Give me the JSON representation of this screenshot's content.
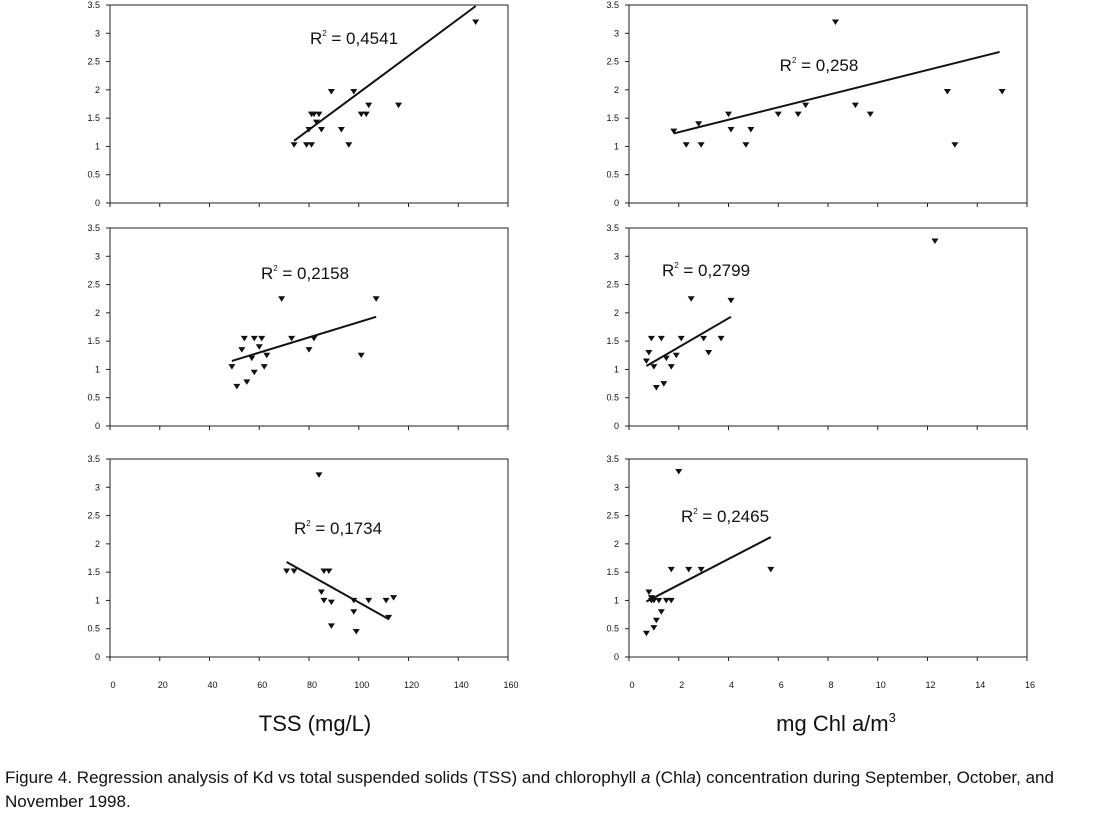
{
  "x_axis_labels": {
    "left": "TSS (mg/L)",
    "right_prefix": "mg Chl a/m",
    "right_superscript": "3"
  },
  "caption": {
    "prefix": "Figure 4. Regression analysis of Kd vs total suspended solids (TSS) and chlorophyll ",
    "italic_1": "a",
    "middle": " (Chl",
    "italic_2": "a",
    "suffix": ") concentration during September, October, and November 1998."
  },
  "chart_data": [
    {
      "id": "tss-september",
      "type": "scatter",
      "xlim": [
        0,
        160
      ],
      "ylim": [
        0,
        3.5
      ],
      "xticks": [
        "0",
        "20",
        "40",
        "60",
        "80",
        "100",
        "120",
        "140",
        "160"
      ],
      "yticks": [
        "0",
        "0.5",
        "1",
        "1.5",
        "2",
        "2.5",
        "3",
        "3.5"
      ],
      "x_tick_labels_shown": false,
      "r2_base": "R",
      "r2_exp": "2",
      "r2_value": " = 0,4541",
      "trendline": [
        [
          74,
          1.1
        ],
        [
          147,
          3.48
        ]
      ],
      "points": [
        [
          74,
          1.03
        ],
        [
          79,
          1.03
        ],
        [
          80,
          1.3
        ],
        [
          81,
          1.03
        ],
        [
          81,
          1.57
        ],
        [
          82,
          1.57
        ],
        [
          83,
          1.43
        ],
        [
          84,
          1.57
        ],
        [
          85,
          1.3
        ],
        [
          89,
          1.97
        ],
        [
          93,
          1.3
        ],
        [
          96,
          1.03
        ],
        [
          98,
          1.97
        ],
        [
          101,
          1.57
        ],
        [
          103,
          1.57
        ],
        [
          104,
          1.73
        ],
        [
          116,
          1.73
        ],
        [
          147,
          3.2
        ]
      ]
    },
    {
      "id": "chl-september",
      "type": "scatter",
      "xlim": [
        0,
        16
      ],
      "ylim": [
        0,
        3.5
      ],
      "xticks": [
        "0",
        "2",
        "4",
        "6",
        "8",
        "10",
        "12",
        "14",
        "16"
      ],
      "yticks": [
        "0",
        "0.5",
        "1",
        "1.5",
        "2",
        "2.5",
        "3",
        "3.5"
      ],
      "x_tick_labels_shown": false,
      "r2_base": "R",
      "r2_exp": "2",
      "r2_value": " = 0,258",
      "trendline": [
        [
          1.8,
          1.23
        ],
        [
          14.9,
          2.67
        ]
      ],
      "points": [
        [
          1.8,
          1.27
        ],
        [
          2.3,
          1.03
        ],
        [
          2.8,
          1.4
        ],
        [
          2.9,
          1.03
        ],
        [
          4,
          1.57
        ],
        [
          4.1,
          1.3
        ],
        [
          4.7,
          1.03
        ],
        [
          4.9,
          1.3
        ],
        [
          6,
          1.57
        ],
        [
          6.8,
          1.57
        ],
        [
          7.1,
          1.73
        ],
        [
          8.3,
          3.2
        ],
        [
          9.1,
          1.73
        ],
        [
          9.7,
          1.57
        ],
        [
          12.8,
          1.97
        ],
        [
          13.1,
          1.03
        ],
        [
          15,
          1.97
        ]
      ]
    },
    {
      "id": "tss-october",
      "type": "scatter",
      "xlim": [
        0,
        160
      ],
      "ylim": [
        0,
        3.5
      ],
      "xticks": [
        "0",
        "20",
        "40",
        "60",
        "80",
        "100",
        "120",
        "140",
        "160"
      ],
      "yticks": [
        "0",
        "0.5",
        "1",
        "1.5",
        "2",
        "2.5",
        "3",
        "3.5"
      ],
      "x_tick_labels_shown": false,
      "r2_base": "R",
      "r2_exp": "2",
      "r2_value": " = 0,2158",
      "trendline": [
        [
          49,
          1.15
        ],
        [
          107,
          1.93
        ]
      ],
      "points": [
        [
          49,
          1.05
        ],
        [
          51,
          0.7
        ],
        [
          53,
          1.35
        ],
        [
          54,
          1.55
        ],
        [
          55,
          0.78
        ],
        [
          57,
          1.2
        ],
        [
          58,
          1.55
        ],
        [
          58,
          0.95
        ],
        [
          60,
          1.4
        ],
        [
          61,
          1.55
        ],
        [
          62,
          1.05
        ],
        [
          63,
          1.25
        ],
        [
          69,
          2.25
        ],
        [
          73,
          1.55
        ],
        [
          80,
          1.35
        ],
        [
          82,
          1.55
        ],
        [
          101,
          1.25
        ],
        [
          107,
          2.25
        ]
      ]
    },
    {
      "id": "chl-october",
      "type": "scatter",
      "xlim": [
        0,
        16
      ],
      "ylim": [
        0,
        3.5
      ],
      "xticks": [
        "0",
        "2",
        "4",
        "6",
        "8",
        "10",
        "12",
        "14",
        "16"
      ],
      "yticks": [
        "0",
        "0.5",
        "1",
        "1.5",
        "2",
        "2.5",
        "3",
        "3.5"
      ],
      "x_tick_labels_shown": false,
      "r2_base": "R",
      "r2_exp": "2",
      "r2_value": " = 0,2799",
      "trendline": [
        [
          0.7,
          1.06
        ],
        [
          4.1,
          1.93
        ]
      ],
      "points": [
        [
          0.7,
          1.15
        ],
        [
          0.8,
          1.3
        ],
        [
          0.9,
          1.55
        ],
        [
          1,
          1.05
        ],
        [
          1.1,
          0.68
        ],
        [
          1.3,
          1.55
        ],
        [
          1.4,
          0.75
        ],
        [
          1.5,
          1.2
        ],
        [
          1.7,
          1.05
        ],
        [
          1.9,
          1.25
        ],
        [
          2.1,
          1.55
        ],
        [
          2.5,
          2.25
        ],
        [
          3,
          1.55
        ],
        [
          3.2,
          1.3
        ],
        [
          3.7,
          1.55
        ],
        [
          4.1,
          2.22
        ],
        [
          12.3,
          3.27
        ]
      ]
    },
    {
      "id": "tss-november",
      "type": "scatter",
      "xlim": [
        0,
        160
      ],
      "ylim": [
        0,
        3.5
      ],
      "xticks": [
        "0",
        "20",
        "40",
        "60",
        "80",
        "100",
        "120",
        "140",
        "160"
      ],
      "yticks": [
        "0",
        "0.5",
        "1",
        "1.5",
        "2",
        "2.5",
        "3",
        "3.5"
      ],
      "x_tick_labels_shown": true,
      "r2_base": "R",
      "r2_exp": "2",
      "r2_value": " = 0,1734",
      "trendline": [
        [
          71,
          1.68
        ],
        [
          112,
          0.67
        ]
      ],
      "points": [
        [
          71,
          1.52
        ],
        [
          74,
          1.52
        ],
        [
          84,
          3.22
        ],
        [
          85,
          1.15
        ],
        [
          86,
          1.52
        ],
        [
          86,
          1.0
        ],
        [
          88,
          1.52
        ],
        [
          89,
          0.97
        ],
        [
          89,
          0.55
        ],
        [
          98,
          1.0
        ],
        [
          98,
          0.8
        ],
        [
          99,
          0.45
        ],
        [
          104,
          1.0
        ],
        [
          111,
          1.0
        ],
        [
          112,
          0.7
        ],
        [
          114,
          1.05
        ]
      ]
    },
    {
      "id": "chl-november",
      "type": "scatter",
      "xlim": [
        0,
        16
      ],
      "ylim": [
        0,
        3.5
      ],
      "xticks": [
        "0",
        "2",
        "4",
        "6",
        "8",
        "10",
        "12",
        "14",
        "16"
      ],
      "yticks": [
        "0",
        "0.5",
        "1",
        "1.5",
        "2",
        "2.5",
        "3",
        "3.5"
      ],
      "x_tick_labels_shown": true,
      "r2_base": "R",
      "r2_exp": "2",
      "r2_value": " = 0,2465",
      "trendline": [
        [
          0.7,
          0.98
        ],
        [
          5.7,
          2.12
        ]
      ],
      "points": [
        [
          0.7,
          0.42
        ],
        [
          0.8,
          1.15
        ],
        [
          0.9,
          1.0
        ],
        [
          0.9,
          1.05
        ],
        [
          1,
          0.52
        ],
        [
          1,
          1.0
        ],
        [
          1.1,
          0.65
        ],
        [
          1.2,
          1.0
        ],
        [
          1.3,
          0.8
        ],
        [
          1.5,
          1.0
        ],
        [
          1.7,
          1.55
        ],
        [
          1.7,
          1.0
        ],
        [
          2,
          3.28
        ],
        [
          2.4,
          1.55
        ],
        [
          2.9,
          1.55
        ],
        [
          5.7,
          1.55
        ]
      ]
    }
  ]
}
